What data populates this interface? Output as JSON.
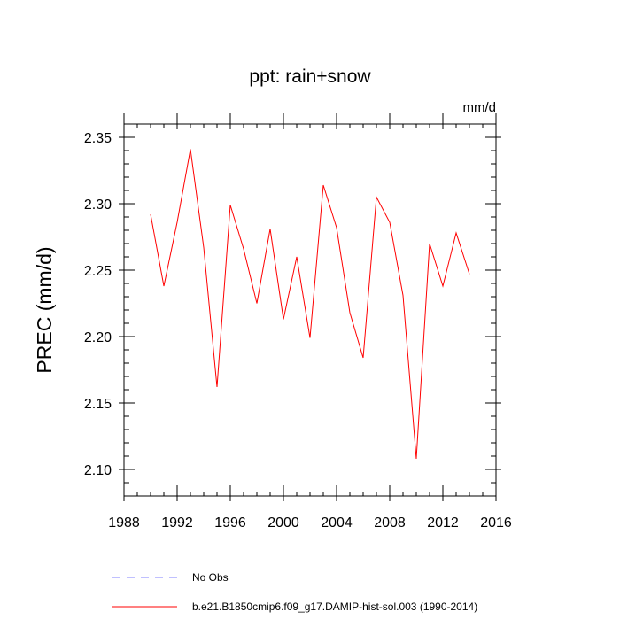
{
  "chart_data": {
    "type": "line",
    "title": "ppt: rain+snow",
    "units": "mm/d",
    "xlabel": "",
    "ylabel": "PREC  (mm/d)",
    "xlim": [
      1988,
      2016
    ],
    "ylim": [
      2.08,
      2.36
    ],
    "xticks": [
      1988,
      1992,
      1996,
      2000,
      2004,
      2008,
      2012,
      2016
    ],
    "yticks": [
      2.1,
      2.15,
      2.2,
      2.25,
      2.3,
      2.35
    ],
    "ytick_labels": [
      "2.10",
      "2.15",
      "2.20",
      "2.25",
      "2.30",
      "2.35"
    ],
    "grid": false,
    "legend_position": "bottom",
    "series": [
      {
        "name": "b.e21.B1850cmip6.f09_g17.DAMIP-hist-sol.003 (1990-2014)",
        "color": "#ff0000",
        "style": "solid",
        "x": [
          1990,
          1991,
          1992,
          1993,
          1994,
          1995,
          1996,
          1997,
          1998,
          1999,
          2000,
          2001,
          2002,
          2003,
          2004,
          2005,
          2006,
          2007,
          2008,
          2009,
          2010,
          2011,
          2012,
          2013,
          2014
        ],
        "y": [
          2.292,
          2.238,
          2.286,
          2.341,
          2.267,
          2.162,
          2.299,
          2.266,
          2.225,
          2.281,
          2.213,
          2.26,
          2.199,
          2.314,
          2.282,
          2.218,
          2.184,
          2.305,
          2.286,
          2.231,
          2.108,
          2.27,
          2.238,
          2.278,
          2.247
        ]
      }
    ],
    "legend": [
      {
        "label": "No Obs",
        "color": "#8080ff",
        "style": "dashed"
      },
      {
        "label": "b.e21.B1850cmip6.f09_g17.DAMIP-hist-sol.003 (1990-2014)",
        "color": "#ff0000",
        "style": "solid"
      }
    ]
  }
}
